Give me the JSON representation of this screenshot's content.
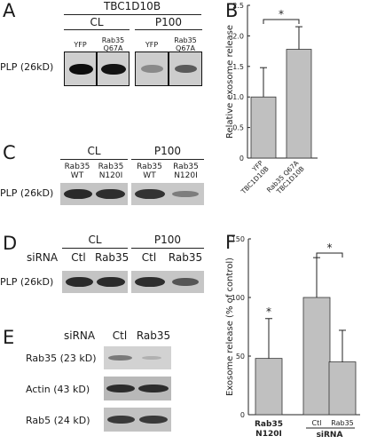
{
  "panels": {
    "A": {
      "letter": "A",
      "title": "TBC1D10B",
      "groups": [
        "CL",
        "P100"
      ],
      "lanes": [
        {
          "line1": "YFP",
          "line2": ""
        },
        {
          "line1": "Rab35",
          "line2": "Q67A"
        },
        {
          "line1": "YFP",
          "line2": ""
        },
        {
          "line1": "Rab35",
          "line2": "Q67A"
        }
      ],
      "row_label": "PLP (26kD)"
    },
    "B": {
      "letter": "B"
    },
    "C": {
      "letter": "C",
      "groups": [
        "CL",
        "P100"
      ],
      "lanes": [
        {
          "line1": "Rab35",
          "line2": "WT"
        },
        {
          "line1": "Rab35",
          "line2": "N120I"
        },
        {
          "line1": "Rab35",
          "line2": "WT"
        },
        {
          "line1": "Rab35",
          "line2": "N120I"
        }
      ],
      "row_label": "PLP (26kD)"
    },
    "D": {
      "letter": "D",
      "groups": [
        "CL",
        "P100"
      ],
      "sirna_label": "siRNA",
      "lanes": [
        "Ctl",
        "Rab35",
        "Ctl",
        "Rab35"
      ],
      "row_label": "PLP (26kD)"
    },
    "E": {
      "letter": "E",
      "sirna_label": "siRNA",
      "lanes": [
        "Ctl",
        "Rab35"
      ],
      "rows": [
        "Rab35 (23 kD)",
        "Actin (43 kD)",
        "Rab5 (24 kD)"
      ]
    },
    "F": {
      "letter": "F"
    }
  },
  "chart_data": [
    {
      "panel": "B",
      "type": "bar",
      "ylabel": "Relative exosome release",
      "ylim": [
        0,
        2.5
      ],
      "yticks": [
        0,
        0.5,
        1.0,
        1.5,
        2.0,
        2.5
      ],
      "ytick_labels": [
        "0",
        "0.5",
        "1.0",
        "1.5",
        "2.0",
        "2.5"
      ],
      "categories": [
        {
          "line1": "YFP",
          "line2": "TBC1D10B"
        },
        {
          "line1": "Rab35 Q67A",
          "line2": "TBC1D10B"
        }
      ],
      "values": [
        1.0,
        1.78
      ],
      "errors": [
        0.48,
        0.37
      ],
      "significance": "*",
      "bar_color": "#c0c0c0"
    },
    {
      "panel": "F",
      "type": "bar",
      "ylabel": "Exosome release (% of control)",
      "ylim": [
        0,
        150
      ],
      "yticks": [
        0,
        50,
        100,
        150
      ],
      "ytick_labels": [
        "0",
        "50",
        "100",
        "150"
      ],
      "categories": [
        "Rab35 N120I",
        "Ctl",
        "Rab35"
      ],
      "group_labels": [
        "Rab35",
        "N120I",
        "siRNA"
      ],
      "values": [
        48,
        100,
        45
      ],
      "errors": [
        34,
        34,
        27
      ],
      "significance": [
        "*",
        "*"
      ],
      "bar_color": "#c0c0c0"
    }
  ]
}
